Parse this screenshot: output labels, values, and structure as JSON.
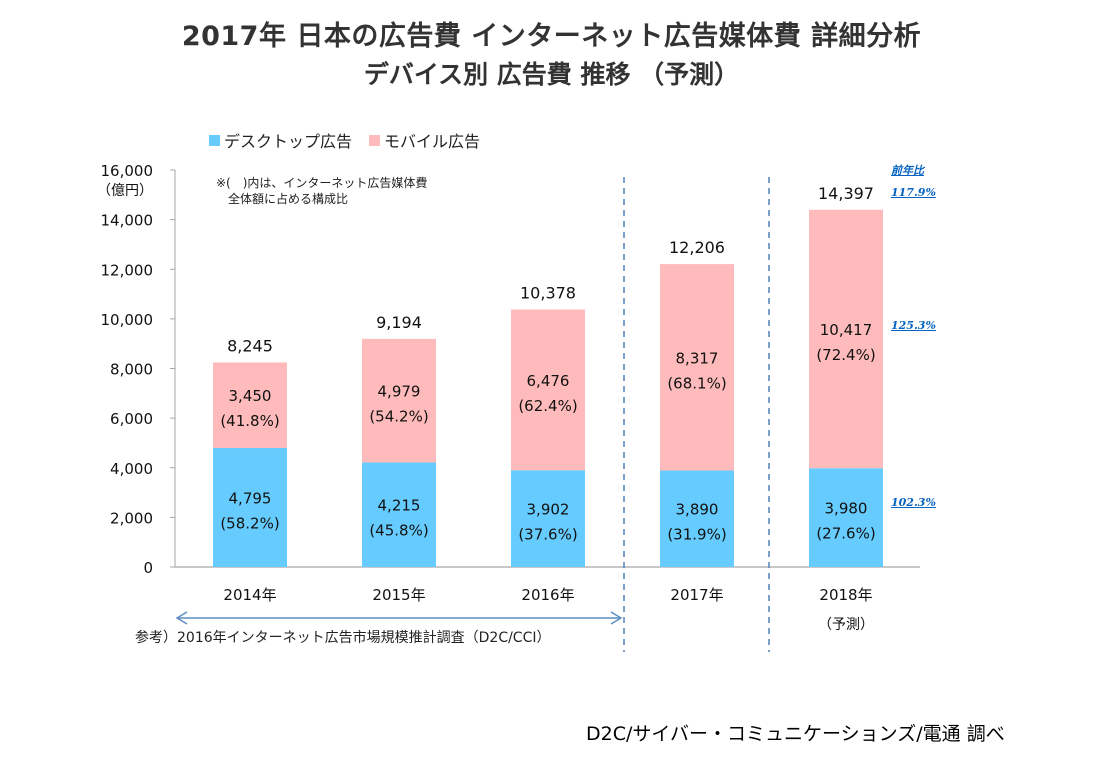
{
  "title": "2017年 日本の広告費 インターネット広告媒体費 詳細分析",
  "subtitle": "デバイス別 広告費 推移 （予測）",
  "note_lines": "※(　)内は、インターネット広告媒体費\n　全体額に占める構成比",
  "reference": "参考）2016年インターネット広告市場規模推計調査（D2C/CCI）",
  "source": "D2C/サイバー・コミュニケーションズ/電通 調べ",
  "colors": {
    "desktop": "#66CCFF",
    "mobile": "#FFBBBB",
    "divider": "#5B8BC0",
    "yoy": "#0563C1",
    "axis": "#A6A6A6"
  },
  "chart_data": {
    "type": "bar",
    "stacked": true,
    "title": "デバイス別 広告費 推移 （予測）",
    "ylabel": "（億円）",
    "xlabel": "",
    "ylim": [
      0,
      16000
    ],
    "yticks": [
      0,
      2000,
      4000,
      6000,
      8000,
      10000,
      12000,
      14000,
      16000
    ],
    "ytick_labels": [
      "0",
      "2,000",
      "4,000",
      "6,000",
      "8,000",
      "10,000",
      "12,000",
      "14,000",
      "16,000"
    ],
    "categories": [
      "2014年",
      "2015年",
      "2016年",
      "2017年",
      "2018年"
    ],
    "category_sublabels": [
      "",
      "",
      "",
      "",
      "（予測）"
    ],
    "series": [
      {
        "name": "デスクトップ広告",
        "color": "#66CCFF",
        "values": [
          4795,
          4215,
          3902,
          3890,
          3980
        ],
        "labels": [
          "4,795",
          "4,215",
          "3,902",
          "3,890",
          "3,980"
        ],
        "shares": [
          "(58.2%)",
          "(45.8%)",
          "(37.6%)",
          "(31.9%)",
          "(27.6%)"
        ]
      },
      {
        "name": "モバイル広告",
        "color": "#FFBBBB",
        "values": [
          3450,
          4979,
          6476,
          8317,
          10417
        ],
        "labels": [
          "3,450",
          "4,979",
          "6,476",
          "8,317",
          "10,417"
        ],
        "shares": [
          "(41.8%)",
          "(54.2%)",
          "(62.4%)",
          "(68.1%)",
          "(72.4%)"
        ]
      }
    ],
    "totals": [
      8245,
      9194,
      10378,
      12206,
      14397
    ],
    "total_labels": [
      "8,245",
      "9,194",
      "10,378",
      "12,206",
      "14,397"
    ],
    "yoy_header": "前年比",
    "yoy": {
      "total": "117.9%",
      "mobile": "125.3%",
      "desktop": "102.3%"
    },
    "legend": "top",
    "grid": false
  }
}
